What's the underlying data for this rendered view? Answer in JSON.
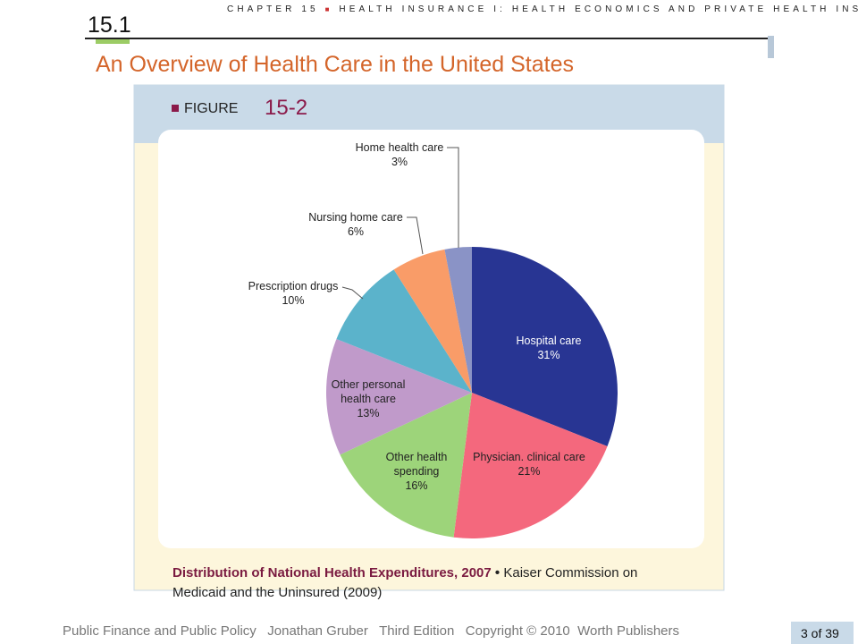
{
  "header": {
    "section": "15.1",
    "chapter": "CHAPTER 15",
    "chapter_title": "HEALTH INSURANCE I: HEALTH ECONOMICS AND PRIVATE HEALTH INSURANCE",
    "slide_title": "An Overview of Health Care in the United States"
  },
  "figure": {
    "label": "FIGURE",
    "number": "15-2",
    "caption_title": "Distribution of National Health Expenditures, 2007",
    "caption_source": "Kaiser Commission on Medicaid and the Uninsured (2009)"
  },
  "footer": {
    "text": "Public Finance and Public Policy   Jonathan Gruber   Third Edition   Copyright © 2010  Worth Publishers",
    "page": "3 of 39"
  },
  "chart_data": {
    "type": "pie",
    "categories": [
      "Hospital care",
      "Physician. clinical care",
      "Other health spending",
      "Other personal health care",
      "Prescription drugs",
      "Nursing home care",
      "Home health care"
    ],
    "values": [
      31,
      21,
      16,
      13,
      10,
      6,
      3
    ],
    "value_labels": [
      "31%",
      "21%",
      "16%",
      "13%",
      "10%",
      "6%",
      "3%"
    ],
    "colors": [
      "#283593",
      "#f4687d",
      "#9dd47a",
      "#c09aca",
      "#5bb3cb",
      "#f99c68",
      "#8a93c6"
    ]
  }
}
